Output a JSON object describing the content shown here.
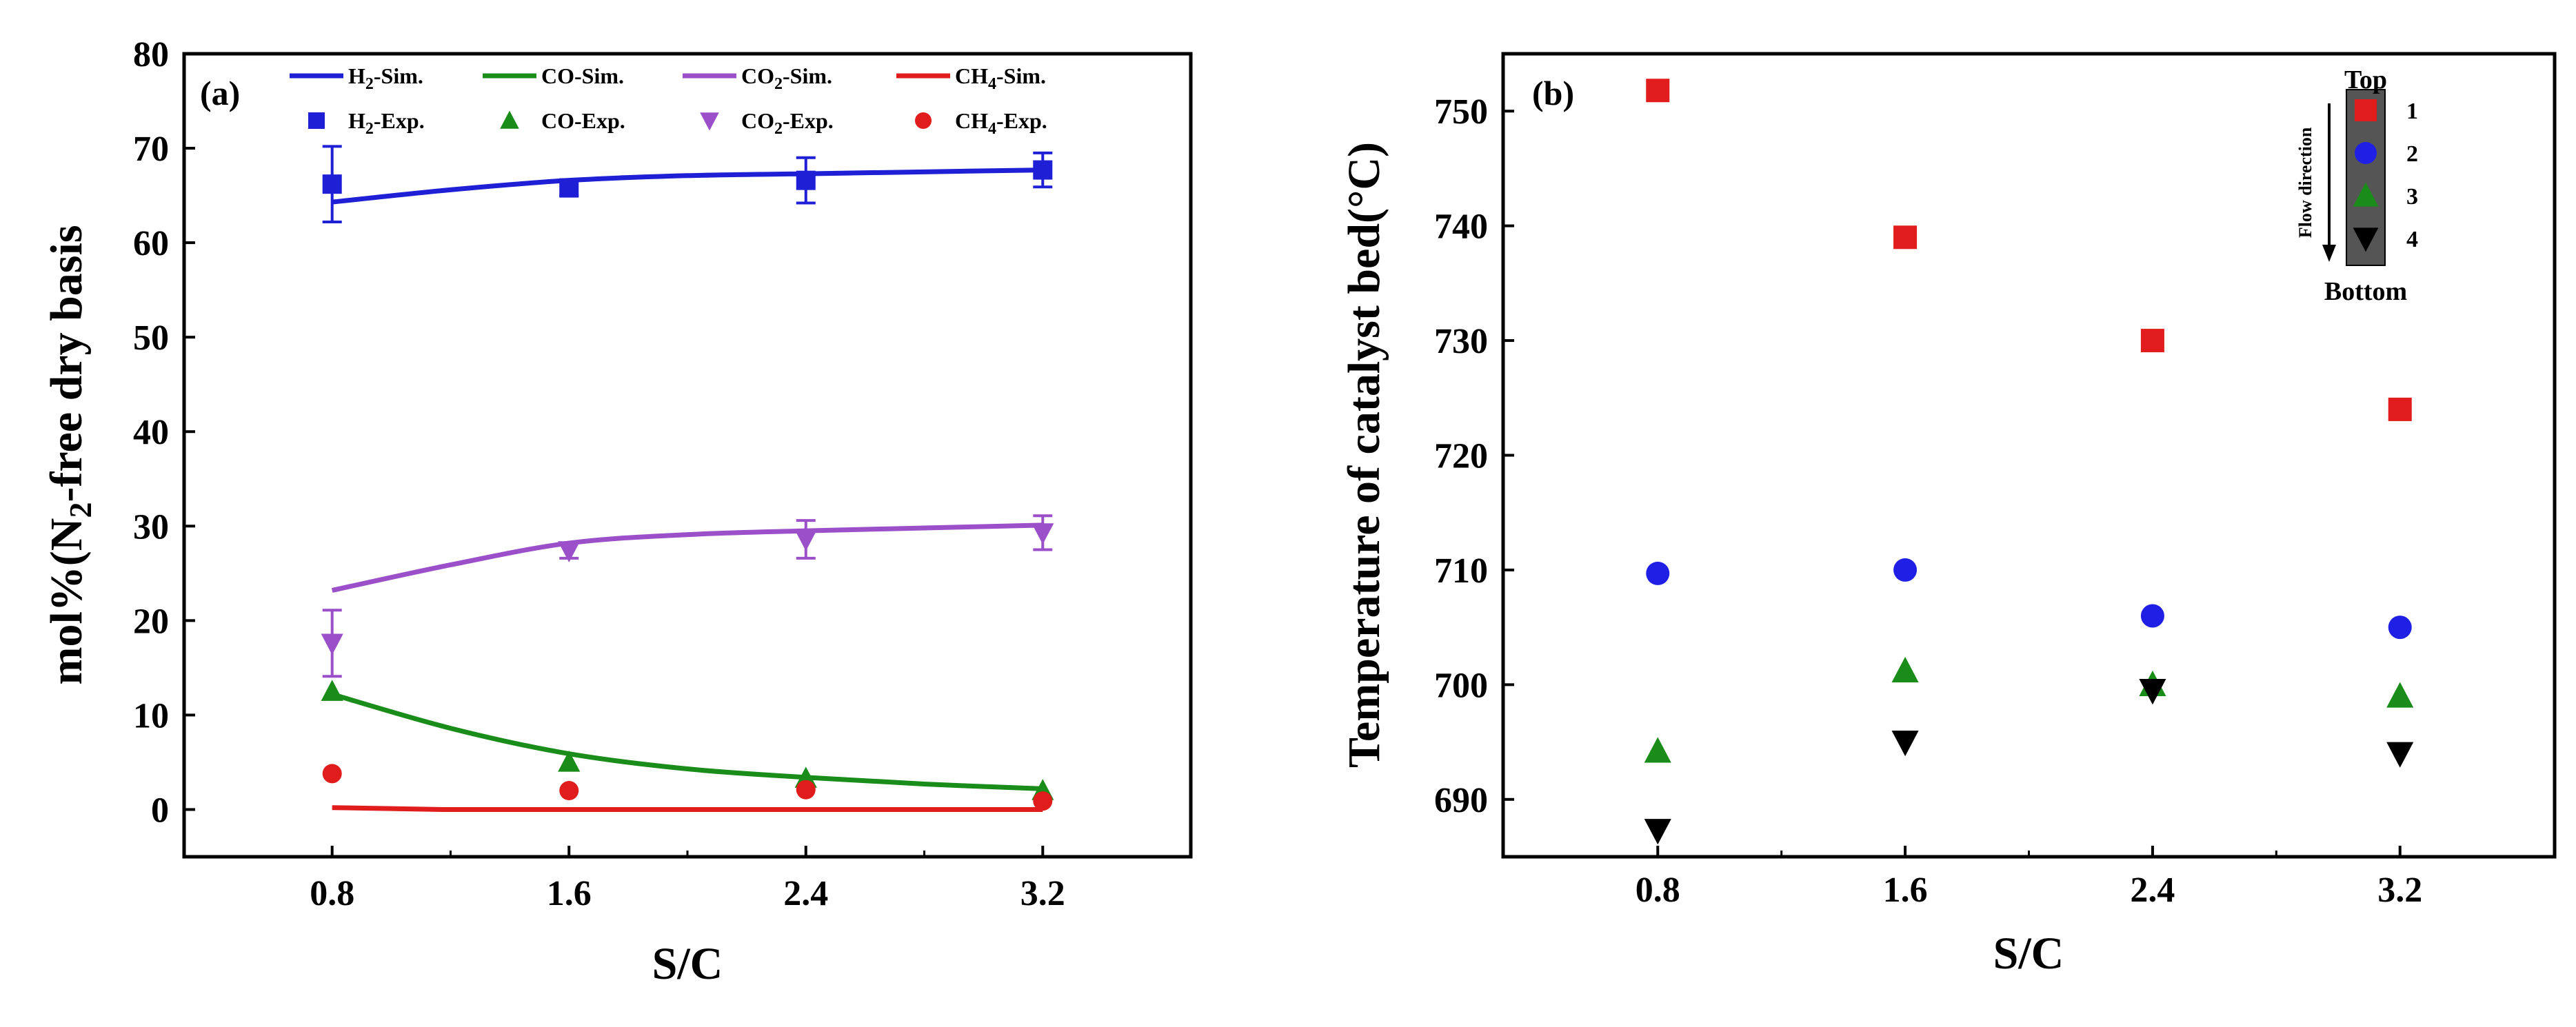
{
  "chart_data": [
    {
      "id": "a",
      "type": "line+scatter",
      "panel_label": "(a)",
      "xlabel": "S/C",
      "ylabel_parts": [
        "mol%(N",
        "2",
        "-free dry basis"
      ],
      "x_ticks": [
        0.8,
        1.6,
        2.4,
        3.2
      ],
      "x_tick_labels": [
        "0.8",
        "1.6",
        "2.4",
        "3.2"
      ],
      "xlim": [
        0.3,
        3.7
      ],
      "y_ticks": [
        0,
        10,
        20,
        30,
        40,
        50,
        60,
        70,
        80
      ],
      "y_tick_labels": [
        "0",
        "10",
        "20",
        "30",
        "40",
        "50",
        "60",
        "70",
        "80"
      ],
      "ylim": [
        -5,
        80
      ],
      "sim_series": [
        {
          "name": "H2-Sim.",
          "label": [
            "H",
            "2",
            "-Sim."
          ],
          "color": "#1f1fd6",
          "x": [
            0.8,
            1.2,
            1.6,
            2.0,
            2.4,
            2.8,
            3.2
          ],
          "y": [
            64.3,
            65.6,
            66.6,
            67.1,
            67.3,
            67.5,
            67.7
          ]
        },
        {
          "name": "CO-Sim.",
          "label": [
            "CO-Sim."
          ],
          "color": "#1a8c1a",
          "x": [
            0.8,
            1.2,
            1.6,
            2.0,
            2.4,
            2.8,
            3.2
          ],
          "y": [
            12.2,
            8.6,
            5.9,
            4.3,
            3.4,
            2.7,
            2.2
          ]
        },
        {
          "name": "CO2-Sim.",
          "label": [
            "CO",
            "2",
            "-Sim."
          ],
          "color": "#9b4fc9",
          "x": [
            0.8,
            1.2,
            1.6,
            2.0,
            2.4,
            2.8,
            3.2
          ],
          "y": [
            23.2,
            25.9,
            28.2,
            29.1,
            29.5,
            29.8,
            30.1
          ]
        },
        {
          "name": "CH4-Sim.",
          "label": [
            "CH",
            "4",
            "-Sim."
          ],
          "color": "#e01c1c",
          "x": [
            0.8,
            1.0,
            1.2,
            1.6,
            2.0,
            2.4,
            2.8,
            3.2
          ],
          "y": [
            0.2,
            0.1,
            0.0,
            0.0,
            0.0,
            0.0,
            0.0,
            0.0
          ]
        }
      ],
      "exp_series": [
        {
          "name": "H2-Exp.",
          "label": [
            "H",
            "2",
            "-Exp."
          ],
          "marker": "square",
          "color": "#1f1fd6",
          "x": [
            0.8,
            1.6,
            2.4,
            3.2
          ],
          "y": [
            66.2,
            65.8,
            66.6,
            67.7
          ],
          "err": [
            4.0,
            0.8,
            2.4,
            1.8
          ]
        },
        {
          "name": "CO-Exp.",
          "label": [
            "CO-Exp."
          ],
          "marker": "triangle-up",
          "color": "#1a8c1a",
          "x": [
            0.8,
            1.6,
            2.4,
            3.2
          ],
          "y": [
            12.5,
            5.0,
            3.3,
            2.0
          ],
          "err": [
            0,
            0,
            0,
            0
          ]
        },
        {
          "name": "CO2-Exp.",
          "label": [
            "CO",
            "2",
            "-Exp."
          ],
          "marker": "triangle-down",
          "color": "#9b4fc9",
          "x": [
            0.8,
            1.6,
            2.4,
            3.2
          ],
          "y": [
            17.6,
            27.4,
            28.6,
            29.3
          ],
          "err": [
            3.5,
            0.8,
            2.0,
            1.8
          ]
        },
        {
          "name": "CH4-Exp.",
          "label": [
            "CH",
            "4",
            "-Exp."
          ],
          "marker": "circle",
          "color": "#e01c1c",
          "x": [
            0.8,
            1.6,
            2.4,
            3.2
          ],
          "y": [
            3.8,
            2.0,
            2.1,
            0.9
          ],
          "err": [
            0,
            0,
            0,
            0
          ]
        }
      ]
    },
    {
      "id": "b",
      "type": "scatter",
      "panel_label": "(b)",
      "xlabel": "S/C",
      "ylabel": "Temperature of catalyst bed(°C)",
      "x_ticks": [
        0.8,
        1.6,
        2.4,
        3.2
      ],
      "x_tick_labels": [
        "0.8",
        "1.6",
        "2.4",
        "3.2"
      ],
      "xlim": [
        0.3,
        3.7
      ],
      "y_ticks": [
        690,
        700,
        710,
        720,
        730,
        740,
        750
      ],
      "y_tick_labels": [
        "690",
        "700",
        "710",
        "720",
        "730",
        "740",
        "750"
      ],
      "ylim": [
        685,
        755
      ],
      "series": [
        {
          "name": "1",
          "marker": "square",
          "color": "#e01c1c",
          "x": [
            0.8,
            1.6,
            2.4,
            3.2
          ],
          "y": [
            751.8,
            739.0,
            730.0,
            724.0
          ]
        },
        {
          "name": "2",
          "marker": "circle",
          "color": "#1f1fe6",
          "x": [
            0.8,
            1.6,
            2.4,
            3.2
          ],
          "y": [
            709.7,
            710.0,
            706.0,
            705.0
          ]
        },
        {
          "name": "3",
          "marker": "triangle-up",
          "color": "#1a8c1a",
          "x": [
            0.8,
            1.6,
            2.4,
            3.2
          ],
          "y": [
            694.2,
            701.2,
            700.0,
            699.0
          ]
        },
        {
          "name": "4",
          "marker": "triangle-down",
          "color": "#000000",
          "x": [
            0.8,
            1.6,
            2.4,
            3.2
          ],
          "y": [
            687.3,
            695.0,
            699.5,
            694.0
          ]
        }
      ],
      "inset": {
        "top": "Top",
        "bottom": "Bottom",
        "flow": "Flow direction",
        "placement": "top-right"
      }
    }
  ]
}
